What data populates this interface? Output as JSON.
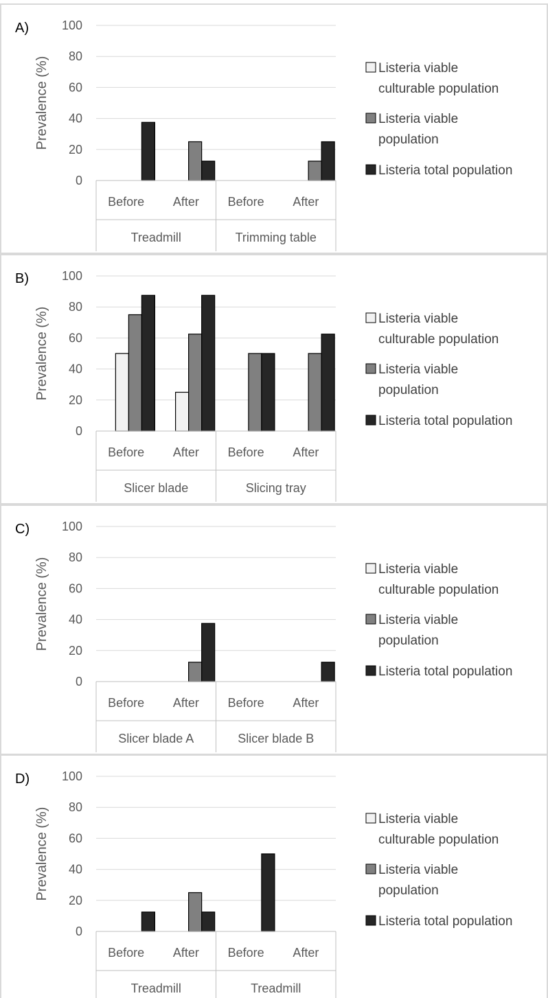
{
  "chart_data": [
    {
      "type": "bar",
      "label": "A)",
      "ylabel": "Prevalence (%)",
      "ylim": [
        0,
        100
      ],
      "yticks": [
        0,
        20,
        40,
        60,
        80,
        100
      ],
      "groups": [
        "Treadmill",
        "Trimming table"
      ],
      "categories": [
        "Before",
        "After",
        "Before",
        "After"
      ],
      "series": [
        {
          "name": "Listeria viable culturable population",
          "color": "#f2f2f2",
          "values": [
            0,
            0,
            0,
            0
          ]
        },
        {
          "name": "Listeria viable population",
          "color": "#808080",
          "values": [
            0,
            25,
            0,
            12.5
          ]
        },
        {
          "name": "Listeria total population",
          "color": "#262626",
          "values": [
            37.5,
            12.5,
            0,
            25
          ]
        }
      ],
      "legend": [
        "Listeria viable culturable population",
        "Listeria viable population",
        "Listeria total population"
      ]
    },
    {
      "type": "bar",
      "label": "B)",
      "ylabel": "Prevalence (%)",
      "ylim": [
        0,
        100
      ],
      "yticks": [
        0,
        20,
        40,
        60,
        80,
        100
      ],
      "groups": [
        "Slicer blade",
        "Slicing tray"
      ],
      "categories": [
        "Before",
        "After",
        "Before",
        "After"
      ],
      "series": [
        {
          "name": "Listeria viable culturable population",
          "color": "#f2f2f2",
          "values": [
            50,
            25,
            0,
            0
          ]
        },
        {
          "name": "Listeria viable population",
          "color": "#808080",
          "values": [
            75,
            62.5,
            50,
            50
          ]
        },
        {
          "name": "Listeria total population",
          "color": "#262626",
          "values": [
            87.5,
            87.5,
            50,
            62.5
          ]
        }
      ],
      "legend": [
        "Listeria viable culturable population",
        "Listeria viable population",
        "Listeria total population"
      ]
    },
    {
      "type": "bar",
      "label": "C)",
      "ylabel": "Prevalence (%)",
      "ylim": [
        0,
        100
      ],
      "yticks": [
        0,
        20,
        40,
        60,
        80,
        100
      ],
      "groups": [
        "Slicer blade A",
        "Slicer blade B"
      ],
      "categories": [
        "Before",
        "After",
        "Before",
        "After"
      ],
      "series": [
        {
          "name": "Listeria viable culturable population",
          "color": "#f2f2f2",
          "values": [
            0,
            0,
            0,
            0
          ]
        },
        {
          "name": "Listeria viable population",
          "color": "#808080",
          "values": [
            0,
            12.5,
            0,
            0
          ]
        },
        {
          "name": "Listeria total population",
          "color": "#262626",
          "values": [
            0,
            37.5,
            0,
            12.5
          ]
        }
      ],
      "legend": [
        "Listeria viable culturable population",
        "Listeria viable population",
        "Listeria total population"
      ]
    },
    {
      "type": "bar",
      "label": "D)",
      "ylabel": "Prevalence (%)",
      "ylim": [
        0,
        100
      ],
      "yticks": [
        0,
        20,
        40,
        60,
        80,
        100
      ],
      "groups": [
        "Treadmill",
        "Treadmill"
      ],
      "categories": [
        "Before",
        "After",
        "Before",
        "After"
      ],
      "series": [
        {
          "name": "Listeria viable culturable population",
          "color": "#f2f2f2",
          "values": [
            0,
            0,
            0,
            0
          ]
        },
        {
          "name": "Listeria viable population",
          "color": "#808080",
          "values": [
            0,
            25,
            0,
            0
          ]
        },
        {
          "name": "Listeria total population",
          "color": "#262626",
          "values": [
            12.5,
            12.5,
            50,
            0
          ]
        }
      ],
      "legend": [
        "Listeria viable culturable population",
        "Listeria viable population",
        "Listeria total population"
      ]
    }
  ]
}
